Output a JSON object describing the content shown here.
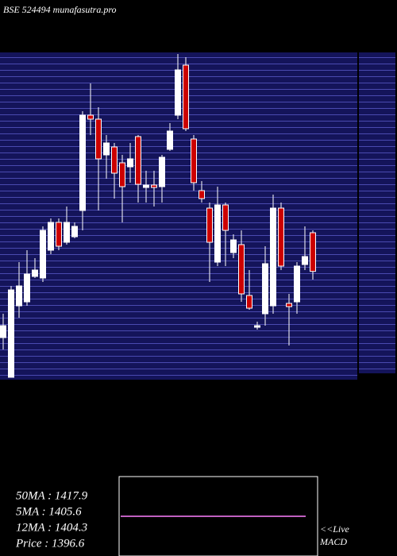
{
  "chart_data": {
    "type": "candlestick",
    "title": "BSE 524494 munafasutra.pro",
    "ylim": [
      1236.6,
      1725
    ],
    "up_color": "#ffffff",
    "down_color": "#cc0000",
    "open": [
      1296.6,
      1236.6,
      1344.6,
      1350.6,
      1389,
      1386.6,
      1428.6,
      1470.6,
      1440.6,
      1449,
      1488.6,
      1632.6,
      1626.6,
      1572.6,
      1584.6,
      1560.6,
      1554.6,
      1600.2,
      1523.4,
      1527,
      1524.6,
      1581,
      1632.6,
      1708.2,
      1596.6,
      1518.6,
      1492.2,
      1410.6,
      1497,
      1425,
      1437,
      1360.2,
      1312.2,
      1332.6,
      1344.6,
      1492.2,
      1348.2,
      1350.6,
      1407,
      1455
    ],
    "close": [
      1314.6,
      1368.6,
      1374.6,
      1392.6,
      1398.6,
      1458.6,
      1470.6,
      1434.6,
      1470.6,
      1464.6,
      1632.6,
      1626.6,
      1566.6,
      1590.6,
      1545,
      1524.6,
      1566.6,
      1528.2,
      1527,
      1523.4,
      1569,
      1608.6,
      1701,
      1612.2,
      1530.6,
      1506.6,
      1440.6,
      1497,
      1458.6,
      1444.2,
      1362.6,
      1341,
      1314.6,
      1408.2,
      1492.2,
      1404.6,
      1343.4,
      1404.6,
      1419,
      1396.6
    ],
    "high": [
      1332.6,
      1374.6,
      1410.6,
      1428.6,
      1416.6,
      1464.6,
      1476.6,
      1476.6,
      1494.6,
      1470.6,
      1638.6,
      1680.6,
      1644.6,
      1602.6,
      1590.6,
      1572.6,
      1590.6,
      1602.6,
      1548.6,
      1548.6,
      1572.6,
      1620.6,
      1725,
      1720.2,
      1602.6,
      1533,
      1500.6,
      1524.6,
      1500.6,
      1452.6,
      1458.6,
      1398.6,
      1320.6,
      1434.6,
      1512.6,
      1500.6,
      1362.6,
      1410.6,
      1464.6,
      1458.6
    ],
    "low": [
      1278.6,
      1236.6,
      1326.6,
      1344.6,
      1386.6,
      1380.6,
      1422.6,
      1428.6,
      1437,
      1446.6,
      1458.6,
      1602.6,
      1488.6,
      1536.6,
      1506.6,
      1470.6,
      1530.6,
      1500.6,
      1500.6,
      1494.6,
      1500.6,
      1578.6,
      1626.6,
      1608.6,
      1518.6,
      1500.6,
      1380.6,
      1404.6,
      1404.6,
      1416.6,
      1350.6,
      1338.6,
      1308.6,
      1314.6,
      1332.6,
      1398.6,
      1284.6,
      1332.6,
      1398.6,
      1384.2
    ],
    "legend": [
      "50MA : 1417.9",
      "5MA : 1405.6",
      "12MA : 1404.3",
      "Price  : 1396.6"
    ],
    "notes": [
      "<<Live",
      "MACD"
    ]
  }
}
